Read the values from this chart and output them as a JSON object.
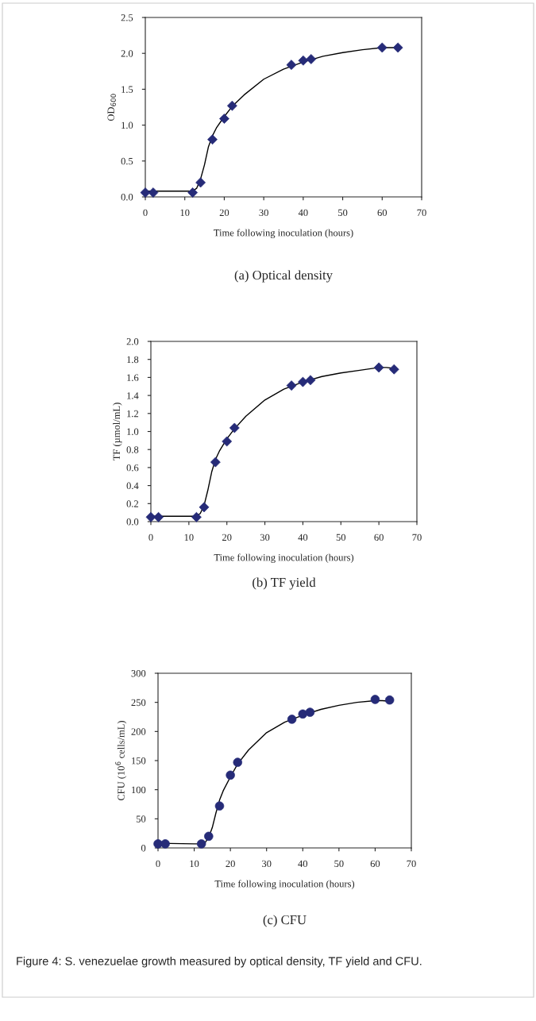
{
  "chart_data": [
    {
      "type": "scatter",
      "title": "(a) Optical density",
      "xlabel": "Time following inoculation (hours)",
      "ylabel": "OD$_{600}$",
      "xlim": [
        0,
        70
      ],
      "xticks": [
        0,
        10,
        20,
        30,
        40,
        50,
        60,
        70
      ],
      "ylim": [
        0,
        2.5
      ],
      "yticks": [
        {
          "value": 0,
          "label": "0.0"
        },
        0.5,
        {
          "value": 1,
          "label": "1.0"
        },
        1.5,
        {
          "value": 2,
          "label": "2.0"
        },
        2.5
      ],
      "series": [
        {
          "marker": "diamond",
          "color": "#262b78",
          "x": [
            0,
            2,
            12,
            14,
            17,
            20,
            22,
            37,
            40,
            42,
            60,
            64
          ],
          "values": [
            0.06,
            0.06,
            0.06,
            0.2,
            0.8,
            1.09,
            1.27,
            1.84,
            1.9,
            1.92,
            2.08,
            2.08
          ]
        },
        {
          "type": "line",
          "marker": "none",
          "color": "#000000",
          "x": [
            0,
            5,
            10,
            12,
            13,
            14,
            15,
            16,
            17,
            18,
            20,
            22,
            25,
            30,
            35,
            40,
            45,
            50,
            55,
            60,
            64
          ],
          "values": [
            0.08,
            0.08,
            0.08,
            0.08,
            0.12,
            0.25,
            0.45,
            0.7,
            0.85,
            0.96,
            1.12,
            1.26,
            1.42,
            1.64,
            1.78,
            1.88,
            1.96,
            2.01,
            2.05,
            2.08,
            2.08
          ]
        }
      ]
    },
    {
      "type": "scatter",
      "title": "(b) TF yield",
      "xlabel": "Time following inoculation (hours)",
      "ylabel": "TF (µmol/mL)",
      "xlim": [
        0,
        70
      ],
      "xticks": [
        0,
        10,
        20,
        30,
        40,
        50,
        60,
        70
      ],
      "ylim": [
        0,
        2
      ],
      "yticks": [
        {
          "value": 0,
          "label": "0.0"
        },
        0.2,
        0.4,
        0.6,
        0.8,
        {
          "value": 1,
          "label": "1.0"
        },
        1.2,
        1.4,
        1.6,
        1.8,
        {
          "value": 2,
          "label": "2.0"
        }
      ],
      "series": [
        {
          "marker": "diamond",
          "color": "#262b78",
          "x": [
            0,
            2,
            12,
            14,
            17,
            20,
            22,
            37,
            40,
            42,
            60,
            64
          ],
          "values": [
            0.05,
            0.05,
            0.05,
            0.16,
            0.66,
            0.89,
            1.04,
            1.51,
            1.55,
            1.57,
            1.71,
            1.69
          ]
        },
        {
          "type": "line",
          "marker": "none",
          "color": "#000000",
          "x": [
            0,
            10,
            12,
            13,
            14,
            15,
            16,
            17,
            18,
            20,
            22,
            25,
            30,
            35,
            40,
            45,
            50,
            55,
            60,
            62,
            64
          ],
          "values": [
            0.06,
            0.06,
            0.06,
            0.09,
            0.18,
            0.35,
            0.55,
            0.69,
            0.78,
            0.92,
            1.03,
            1.17,
            1.35,
            1.47,
            1.55,
            1.61,
            1.65,
            1.68,
            1.71,
            1.71,
            1.7
          ]
        }
      ]
    },
    {
      "type": "scatter",
      "title": "(c) CFU",
      "xlabel": "Time following inoculation (hours)",
      "ylabel": "CFU (10$^{6}$ cells/mL)",
      "xlim": [
        0,
        70
      ],
      "xticks": [
        0,
        10,
        20,
        30,
        40,
        50,
        60,
        70
      ],
      "ylim": [
        0,
        300
      ],
      "yticks": [
        0,
        50,
        100,
        150,
        200,
        250,
        300
      ],
      "annotations": [
        "Figure 4: S. venezuelae growth measured by optical density, TF yield and CFU."
      ],
      "series": [
        {
          "marker": "circle",
          "color": "#262b78",
          "x": [
            0,
            2,
            12,
            14,
            17,
            20,
            22,
            37,
            40,
            42,
            60,
            64
          ],
          "values": [
            7,
            7,
            7,
            20,
            72,
            125,
            147,
            221,
            230,
            233,
            255,
            254
          ]
        },
        {
          "type": "line",
          "marker": "none",
          "color": "#000000",
          "x": [
            0,
            10,
            12,
            13,
            14,
            15,
            16,
            17,
            18,
            20,
            22,
            25,
            30,
            35,
            40,
            45,
            50,
            55,
            60,
            62,
            64
          ],
          "values": [
            8,
            7,
            7,
            9,
            18,
            35,
            60,
            82,
            98,
            122,
            144,
            168,
            198,
            216,
            228,
            238,
            245,
            250,
            253,
            253,
            252
          ]
        }
      ]
    }
  ]
}
